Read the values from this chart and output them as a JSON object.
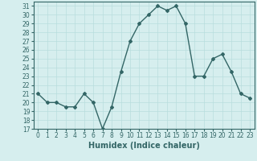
{
  "xlabel": "Humidex (Indice chaleur)",
  "x_values": [
    0,
    1,
    2,
    3,
    4,
    5,
    6,
    7,
    8,
    9,
    10,
    11,
    12,
    13,
    14,
    15,
    16,
    17,
    18,
    19,
    20,
    21,
    22,
    23
  ],
  "y_values": [
    21,
    20,
    20,
    19.5,
    19.5,
    21,
    20,
    17,
    19.5,
    23.5,
    27,
    29,
    30,
    31,
    30.5,
    31,
    29,
    23,
    23,
    25,
    25.5,
    23.5,
    21,
    20.5
  ],
  "ylim": [
    17,
    31.5
  ],
  "yticks": [
    17,
    18,
    19,
    20,
    21,
    22,
    23,
    24,
    25,
    26,
    27,
    28,
    29,
    30,
    31
  ],
  "xticks": [
    0,
    1,
    2,
    3,
    4,
    5,
    6,
    7,
    8,
    9,
    10,
    11,
    12,
    13,
    14,
    15,
    16,
    17,
    18,
    19,
    20,
    21,
    22,
    23
  ],
  "line_color": "#336666",
  "marker": "D",
  "marker_size": 2,
  "line_width": 1.0,
  "bg_color": "#d6eeee",
  "grid_color": "#b8dddd",
  "label_fontsize": 7,
  "tick_fontsize": 5.5
}
